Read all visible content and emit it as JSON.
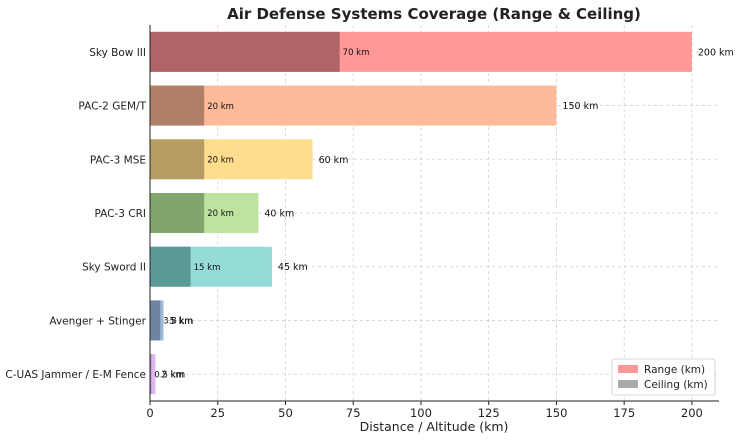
{
  "chart_data": {
    "type": "bar",
    "orientation": "horizontal",
    "title": "Air Defense Systems Coverage (Range & Ceiling)",
    "xlabel": "Distance / Altitude (km)",
    "ylabel": "",
    "xlim": [
      0,
      210
    ],
    "xticks": [
      0,
      25,
      50,
      75,
      100,
      125,
      150,
      175,
      200
    ],
    "grid": true,
    "legend_position": "bottom-right",
    "categories": [
      "Sky Bow III",
      "PAC-2 GEM/T",
      "PAC-3 MSE",
      "PAC-3 CRI",
      "Sky Sword II",
      "Avenger + Stinger",
      "C-UAS Jammer / E-M Fence"
    ],
    "series": [
      {
        "name": "Range (km)",
        "values": [
          200,
          150,
          60,
          40,
          45,
          5,
          2
        ],
        "labels": [
          "200 km",
          "150 km",
          "60 km",
          "40 km",
          "45 km",
          "5 km",
          "2 km"
        ],
        "colors": [
          "#ff9896",
          "#ffbb99",
          "#ffdd8e",
          "#bde39f",
          "#95dcd9",
          "#9fb9d8",
          "#dcb8ee"
        ]
      },
      {
        "name": "Ceiling (km)",
        "values": [
          70,
          20,
          20,
          20,
          15,
          3.8,
          0.5
        ],
        "labels": [
          "70 km",
          "20 km",
          "20 km",
          "20 km",
          "15 km",
          "3.8 km",
          "0.5 km"
        ],
        "colors": [
          "#b06466",
          "#b07f68",
          "#b69d63",
          "#80a56d",
          "#5b9a97",
          "#6f84a0",
          "#a08ab5"
        ]
      }
    ],
    "legend": [
      {
        "label": "Range (km)",
        "color": "#ff9896"
      },
      {
        "label": "Ceiling (km)",
        "color": "#aaaaaa"
      }
    ]
  }
}
